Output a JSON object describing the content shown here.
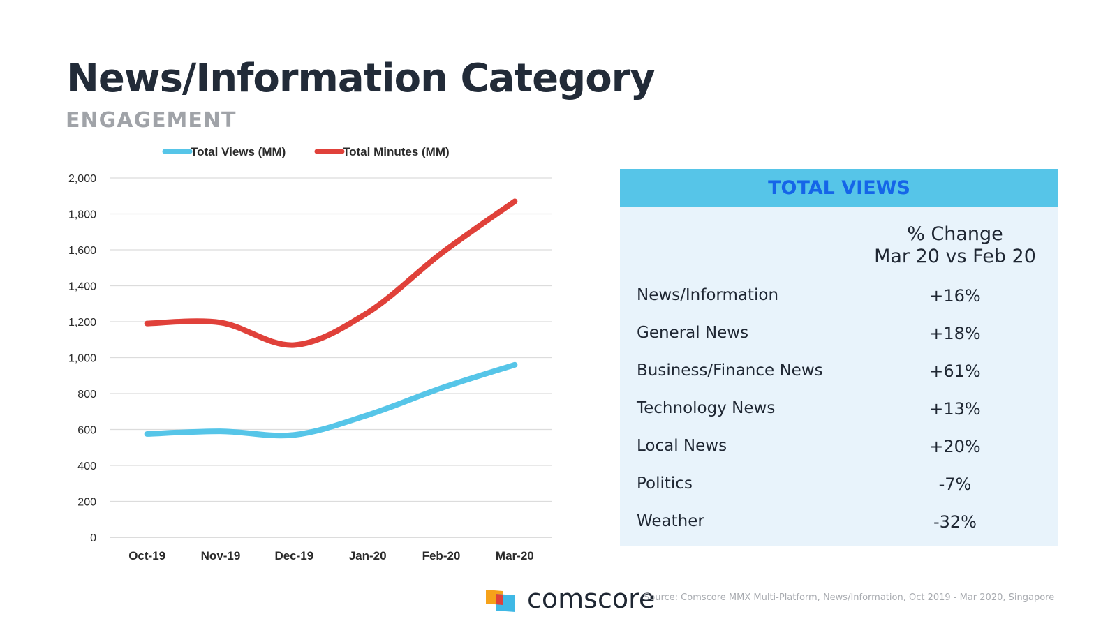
{
  "title": "News/Information Category",
  "subtitle": "ENGAGEMENT",
  "chart_data": {
    "type": "line",
    "categories": [
      "Oct-19",
      "Nov-19",
      "Dec-19",
      "Jan-20",
      "Feb-20",
      "Mar-20"
    ],
    "series": [
      {
        "name": "Total Views (MM)",
        "color": "#56c5e8",
        "values": [
          575,
          590,
          570,
          680,
          830,
          960
        ]
      },
      {
        "name": "Total Minutes (MM)",
        "color": "#e0413a",
        "values": [
          1190,
          1195,
          1070,
          1250,
          1580,
          1870
        ]
      }
    ],
    "ylim": [
      0,
      2000
    ],
    "yticks": [
      "0",
      "200",
      "400",
      "600",
      "800",
      "1,000",
      "1,200",
      "1,400",
      "1,600",
      "1,800",
      "2,000"
    ],
    "ytick_values": [
      0,
      200,
      400,
      600,
      800,
      1000,
      1200,
      1400,
      1600,
      1800,
      2000
    ],
    "legend_position": "top",
    "grid": true,
    "title": "",
    "xlabel": "",
    "ylabel": ""
  },
  "panel": {
    "header": "TOTAL VIEWS",
    "column_header_line1": "% Change",
    "column_header_line2": "Mar 20 vs Feb 20",
    "rows": [
      {
        "label": "News/Information",
        "value": "+16%"
      },
      {
        "label": "General News",
        "value": "+18%"
      },
      {
        "label": "Business/Finance News",
        "value": "+61%"
      },
      {
        "label": "Technology News",
        "value": "+13%"
      },
      {
        "label": "Local News",
        "value": "+20%"
      },
      {
        "label": "Politics",
        "value": "-7%"
      },
      {
        "label": "Weather",
        "value": "-32%"
      }
    ]
  },
  "brand": "comscore",
  "source": "Source: Comscore MMX Multi-Platform, News/Information, Oct 2019 - Mar 2020, Singapore",
  "colors": {
    "accent_blue": "#56c5e8",
    "accent_red": "#e0413a",
    "header_text": "#1565e8",
    "panel_bg": "#e8f3fb"
  }
}
